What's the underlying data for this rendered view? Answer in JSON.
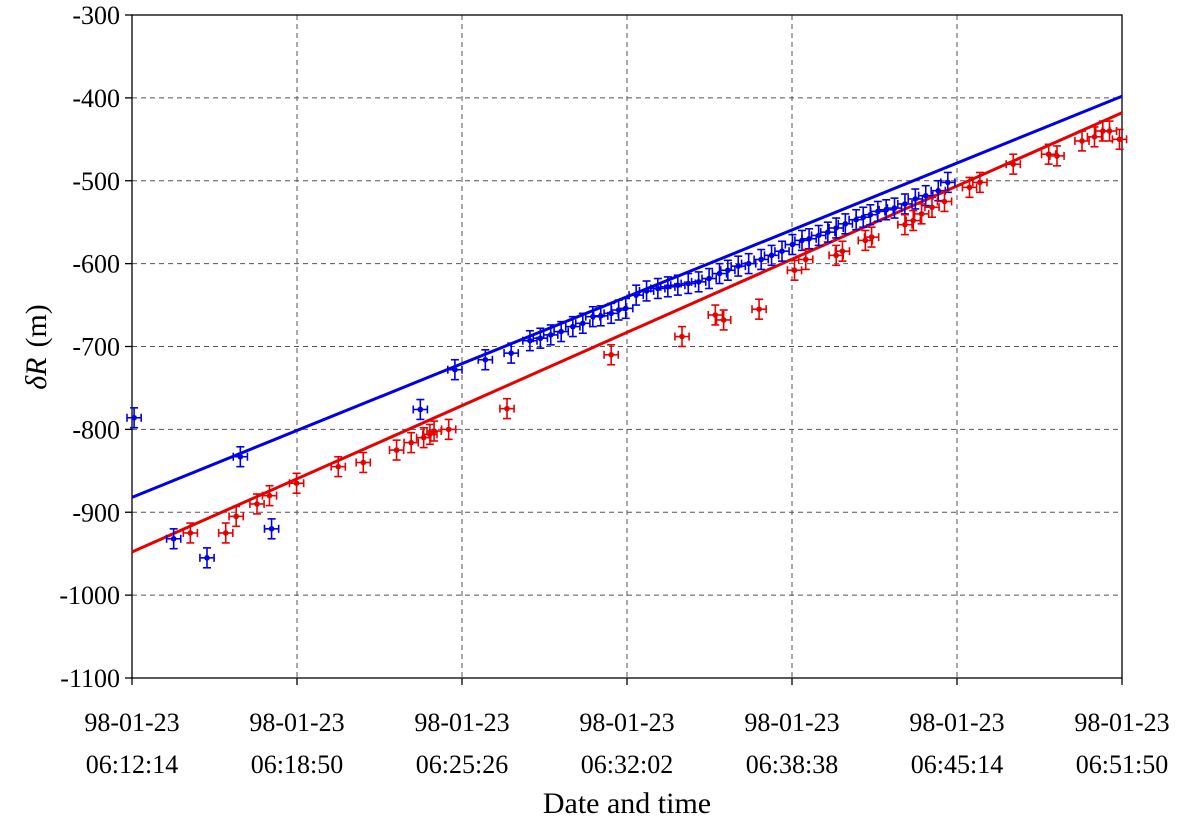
{
  "chart_data": {
    "type": "scatter",
    "title": "",
    "xlabel": "Date and time",
    "ylabel_italic": "δR",
    "ylabel_unit": "(m)",
    "xlim": [
      0,
      2376
    ],
    "ylim": [
      -1100,
      -300
    ],
    "x_ticks": [
      {
        "value": 0,
        "date": "98-01-23",
        "time": "06:12:14"
      },
      {
        "value": 396,
        "date": "98-01-23",
        "time": "06:18:50"
      },
      {
        "value": 792,
        "date": "98-01-23",
        "time": "06:25:26"
      },
      {
        "value": 1188,
        "date": "98-01-23",
        "time": "06:32:02"
      },
      {
        "value": 1584,
        "date": "98-01-23",
        "time": "06:38:38"
      },
      {
        "value": 1980,
        "date": "98-01-23",
        "time": "06:45:14"
      },
      {
        "value": 2376,
        "date": "98-01-23",
        "time": "06:51:50"
      }
    ],
    "y_ticks": [
      -300,
      -400,
      -500,
      -600,
      -700,
      -800,
      -900,
      -1000,
      -1100
    ],
    "grid": true,
    "series": [
      {
        "color": "#0000e6",
        "fit_line": {
          "y_start": -882,
          "y_end": -398
        },
        "x_err": 17,
        "y_err": 12,
        "points": [
          [
            5,
            -786
          ],
          [
            100,
            -932
          ],
          [
            180,
            -955
          ],
          [
            260,
            -833
          ],
          [
            335,
            -920
          ],
          [
            692,
            -776
          ],
          [
            775,
            -728
          ],
          [
            848,
            -716
          ],
          [
            910,
            -708
          ],
          [
            955,
            -693
          ],
          [
            980,
            -690
          ],
          [
            1005,
            -686
          ],
          [
            1030,
            -682
          ],
          [
            1058,
            -676
          ],
          [
            1082,
            -672
          ],
          [
            1106,
            -664
          ],
          [
            1125,
            -663
          ],
          [
            1150,
            -660
          ],
          [
            1168,
            -656
          ],
          [
            1185,
            -654
          ],
          [
            1210,
            -638
          ],
          [
            1235,
            -633
          ],
          [
            1262,
            -630
          ],
          [
            1286,
            -628
          ],
          [
            1310,
            -626
          ],
          [
            1335,
            -624
          ],
          [
            1360,
            -622
          ],
          [
            1385,
            -618
          ],
          [
            1410,
            -612
          ],
          [
            1430,
            -608
          ],
          [
            1455,
            -603
          ],
          [
            1480,
            -600
          ],
          [
            1510,
            -595
          ],
          [
            1535,
            -590
          ],
          [
            1560,
            -585
          ],
          [
            1585,
            -577
          ],
          [
            1608,
            -572
          ],
          [
            1625,
            -570
          ],
          [
            1648,
            -566
          ],
          [
            1670,
            -562
          ],
          [
            1690,
            -557
          ],
          [
            1712,
            -552
          ],
          [
            1738,
            -547
          ],
          [
            1755,
            -544
          ],
          [
            1772,
            -541
          ],
          [
            1790,
            -537
          ],
          [
            1810,
            -535
          ],
          [
            1830,
            -533
          ],
          [
            1855,
            -528
          ],
          [
            1880,
            -522
          ],
          [
            1905,
            -518
          ],
          [
            1935,
            -512
          ],
          [
            1958,
            -502
          ]
        ]
      },
      {
        "color": "#e60000",
        "fit_line": {
          "y_start": -948,
          "y_end": -418
        },
        "x_err": 17,
        "y_err": 12,
        "points": [
          [
            140,
            -925
          ],
          [
            225,
            -925
          ],
          [
            250,
            -905
          ],
          [
            300,
            -890
          ],
          [
            330,
            -880
          ],
          [
            395,
            -865
          ],
          [
            495,
            -845
          ],
          [
            555,
            -840
          ],
          [
            635,
            -825
          ],
          [
            670,
            -816
          ],
          [
            700,
            -810
          ],
          [
            715,
            -806
          ],
          [
            725,
            -802
          ],
          [
            760,
            -800
          ],
          [
            900,
            -775
          ],
          [
            1150,
            -710
          ],
          [
            1320,
            -688
          ],
          [
            1400,
            -662
          ],
          [
            1420,
            -668
          ],
          [
            1505,
            -655
          ],
          [
            1590,
            -608
          ],
          [
            1617,
            -595
          ],
          [
            1690,
            -590
          ],
          [
            1705,
            -585
          ],
          [
            1760,
            -572
          ],
          [
            1775,
            -568
          ],
          [
            1855,
            -553
          ],
          [
            1875,
            -548
          ],
          [
            1895,
            -540
          ],
          [
            1920,
            -532
          ],
          [
            1950,
            -525
          ],
          [
            2010,
            -508
          ],
          [
            2035,
            -502
          ],
          [
            2115,
            -480
          ],
          [
            2200,
            -468
          ],
          [
            2220,
            -470
          ],
          [
            2280,
            -452
          ],
          [
            2310,
            -447
          ],
          [
            2330,
            -440
          ],
          [
            2346,
            -440
          ],
          [
            2370,
            -450
          ]
        ]
      }
    ]
  }
}
